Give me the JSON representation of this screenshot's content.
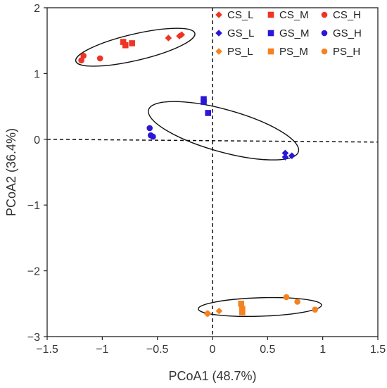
{
  "chart_data": {
    "type": "scatter",
    "title": "",
    "xlabel": "PCoA1 (48.7%)",
    "ylabel": "PCoA2 (36.4%)",
    "xlim": [
      -1.5,
      1.5
    ],
    "ylim": [
      -3,
      2
    ],
    "x_ticks": [
      -1.5,
      -1,
      -0.5,
      0,
      0.5,
      1,
      1.5
    ],
    "y_ticks": [
      -3,
      -2,
      -1,
      0,
      1,
      2
    ],
    "x_tick_labels": [
      "−1.5",
      "−1",
      "−0.5",
      "0",
      "0.5",
      "1",
      "1.5"
    ],
    "y_tick_labels": [
      "−3",
      "−2",
      "−1",
      "0",
      "1",
      "2"
    ],
    "grid": false,
    "reference_lines": [
      "x = 0 (dashed)",
      "y = 0 (dashed)"
    ],
    "legend_position": "top-right",
    "series": [
      {
        "name": "CS_L",
        "marker": "diamond",
        "color": "#ee3424",
        "points": [
          [
            -0.4,
            1.54
          ],
          [
            -0.28,
            1.59
          ],
          [
            -0.3,
            1.57
          ]
        ]
      },
      {
        "name": "CS_M",
        "marker": "square",
        "color": "#ee3424",
        "points": [
          [
            -0.81,
            1.48
          ],
          [
            -0.79,
            1.43
          ],
          [
            -0.73,
            1.46
          ]
        ]
      },
      {
        "name": "CS_H",
        "marker": "circle",
        "color": "#ee3424",
        "points": [
          [
            -1.19,
            1.2
          ],
          [
            -1.17,
            1.27
          ],
          [
            -1.02,
            1.23
          ]
        ]
      },
      {
        "name": "GS_L",
        "marker": "diamond",
        "color": "#2a17d8",
        "points": [
          [
            0.66,
            -0.21
          ],
          [
            0.66,
            -0.27
          ],
          [
            0.72,
            -0.25
          ]
        ]
      },
      {
        "name": "GS_M",
        "marker": "square",
        "color": "#2a17d8",
        "points": [
          [
            -0.08,
            0.61
          ],
          [
            -0.08,
            0.57
          ],
          [
            -0.04,
            0.4
          ]
        ]
      },
      {
        "name": "GS_H",
        "marker": "circle",
        "color": "#2a17d8",
        "points": [
          [
            -0.57,
            0.17
          ],
          [
            -0.56,
            0.06
          ],
          [
            -0.54,
            0.04
          ]
        ]
      },
      {
        "name": "PS_L",
        "marker": "diamond",
        "color": "#f58220",
        "points": [
          [
            -0.05,
            -2.65
          ],
          [
            -0.04,
            -2.65
          ],
          [
            0.06,
            -2.61
          ]
        ]
      },
      {
        "name": "PS_M",
        "marker": "square",
        "color": "#f58220",
        "points": [
          [
            0.26,
            -2.5
          ],
          [
            0.27,
            -2.58
          ],
          [
            0.27,
            -2.63
          ]
        ]
      },
      {
        "name": "PS_H",
        "marker": "circle",
        "color": "#f58220",
        "points": [
          [
            0.67,
            -2.4
          ],
          [
            0.77,
            -2.47
          ],
          [
            0.93,
            -2.59
          ]
        ]
      }
    ],
    "ellipses": [
      {
        "group": "CS",
        "center": [
          -0.7,
          1.4
        ],
        "rx": 0.58,
        "ry": 0.18,
        "angle_deg": 21.4
      },
      {
        "group": "GS",
        "center": [
          0.1,
          0.13
        ],
        "rx": 0.75,
        "ry": 0.28,
        "angle_deg": -25
      },
      {
        "group": "PS",
        "center": [
          0.43,
          -2.55
        ],
        "rx": 0.56,
        "ry": 0.14,
        "angle_deg": 3
      }
    ]
  }
}
